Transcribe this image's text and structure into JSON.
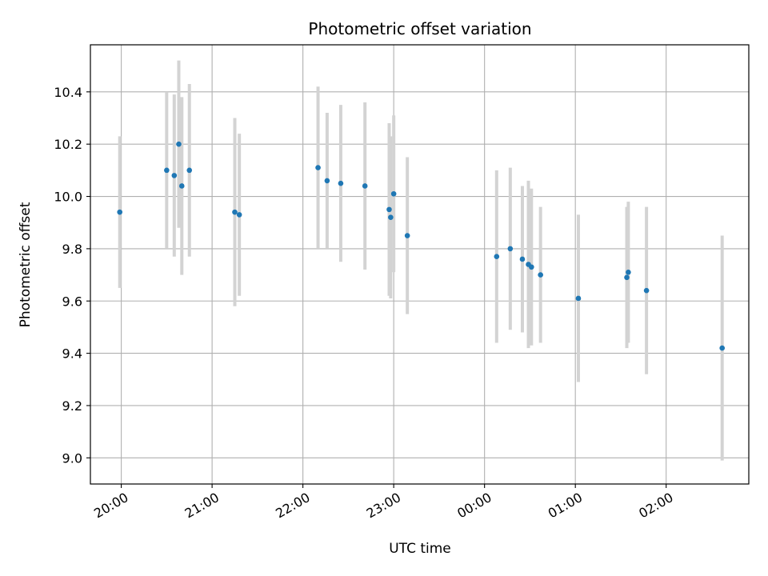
{
  "chart_data": {
    "type": "scatter",
    "title": "Photometric offset variation",
    "xlabel": "UTC time",
    "ylabel": "Photometric offset",
    "x_ticks": [
      "20:00",
      "21:00",
      "22:00",
      "23:00",
      "00:00",
      "01:00",
      "02:00"
    ],
    "x_tick_hours": [
      20,
      21,
      22,
      23,
      24,
      25,
      26
    ],
    "xlim_hours": [
      19.66,
      26.91
    ],
    "y_ticks": [
      "9.0",
      "9.2",
      "9.4",
      "9.6",
      "9.8",
      "10.0",
      "10.2",
      "10.4"
    ],
    "ylim": [
      8.9,
      10.58
    ],
    "grid": true,
    "marker_color": "#1f77b4",
    "errorbar_color": "#d3d3d3",
    "series": [
      {
        "points": [
          {
            "t": "19:59",
            "y": 9.94,
            "err": 0.29
          },
          {
            "t": "20:30",
            "y": 10.1,
            "err": 0.3
          },
          {
            "t": "20:35",
            "y": 10.08,
            "err": 0.31
          },
          {
            "t": "20:38",
            "y": 10.2,
            "err": 0.32
          },
          {
            "t": "20:40",
            "y": 10.04,
            "err": 0.34
          },
          {
            "t": "20:45",
            "y": 10.1,
            "err": 0.33
          },
          {
            "t": "21:15",
            "y": 9.94,
            "err": 0.36
          },
          {
            "t": "21:18",
            "y": 9.93,
            "err": 0.31
          },
          {
            "t": "22:10",
            "y": 10.11,
            "err": 0.31
          },
          {
            "t": "22:16",
            "y": 10.06,
            "err": 0.26
          },
          {
            "t": "22:25",
            "y": 10.05,
            "err": 0.3
          },
          {
            "t": "22:41",
            "y": 10.04,
            "err": 0.32
          },
          {
            "t": "22:57",
            "y": 9.95,
            "err": 0.33
          },
          {
            "t": "22:58",
            "y": 9.92,
            "err": 0.31
          },
          {
            "t": "23:00",
            "y": 10.01,
            "err": 0.3
          },
          {
            "t": "23:09",
            "y": 9.85,
            "err": 0.3
          },
          {
            "t": "00:08",
            "y": 9.77,
            "err": 0.33
          },
          {
            "t": "00:17",
            "y": 9.8,
            "err": 0.31
          },
          {
            "t": "00:25",
            "y": 9.76,
            "err": 0.28
          },
          {
            "t": "00:29",
            "y": 9.74,
            "err": 0.32
          },
          {
            "t": "00:31",
            "y": 9.73,
            "err": 0.3
          },
          {
            "t": "00:37",
            "y": 9.7,
            "err": 0.26
          },
          {
            "t": "01:02",
            "y": 9.61,
            "err": 0.32
          },
          {
            "t": "01:34",
            "y": 9.69,
            "err": 0.27
          },
          {
            "t": "01:35",
            "y": 9.71,
            "err": 0.27
          },
          {
            "t": "01:47",
            "y": 9.64,
            "err": 0.32
          },
          {
            "t": "02:37",
            "y": 9.42,
            "err": 0.43
          }
        ]
      }
    ]
  }
}
